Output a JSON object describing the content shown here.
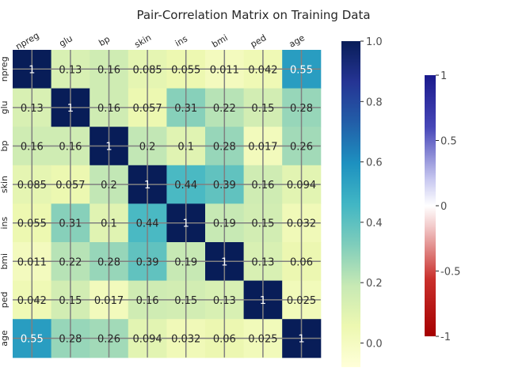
{
  "chart_data": {
    "type": "heatmap",
    "title": "Pair-Correlation Matrix on Training Data",
    "columns": [
      "npreg",
      "glu",
      "bp",
      "skin",
      "ins",
      "bmi",
      "ped",
      "age"
    ],
    "rows": [
      "npreg",
      "glu",
      "bp",
      "skin",
      "ins",
      "bmi",
      "ped",
      "age"
    ],
    "values": [
      [
        "1",
        "0.13",
        "0.16",
        "0.085",
        "0.055",
        "0.011",
        "0.042",
        "0.55"
      ],
      [
        "0.13",
        "1",
        "0.16",
        "0.057",
        "0.31",
        "0.22",
        "0.15",
        "0.28"
      ],
      [
        "0.16",
        "0.16",
        "1",
        "0.2",
        "0.1",
        "0.28",
        "0.017",
        "0.26"
      ],
      [
        "0.085",
        "0.057",
        "0.2",
        "1",
        "0.44",
        "0.39",
        "0.16",
        "0.094"
      ],
      [
        "0.055",
        "0.31",
        "0.1",
        "0.44",
        "1",
        "0.19",
        "0.15",
        "0.032"
      ],
      [
        "0.011",
        "0.22",
        "0.28",
        "0.39",
        "0.19",
        "1",
        "0.13",
        "0.06"
      ],
      [
        "0.042",
        "0.15",
        "0.017",
        "0.16",
        "0.15",
        "0.13",
        "1",
        "0.025"
      ],
      [
        "0.55",
        "0.28",
        "0.26",
        "0.094",
        "0.032",
        "0.06",
        "0.025",
        "1"
      ]
    ],
    "colormap": "YlGnBu",
    "colorbar": {
      "range": [
        -0.08,
        1.0
      ],
      "ticks": [
        "1.0",
        "0.8",
        "0.6",
        "0.4",
        "0.2",
        "0.0"
      ]
    },
    "grid": true,
    "secondary_colorbar": {
      "colormap": "diverging red-white-blue",
      "range": [
        -1,
        1
      ],
      "ticks": [
        "1",
        "0.5",
        "0",
        "-0.5",
        "-1"
      ]
    }
  }
}
